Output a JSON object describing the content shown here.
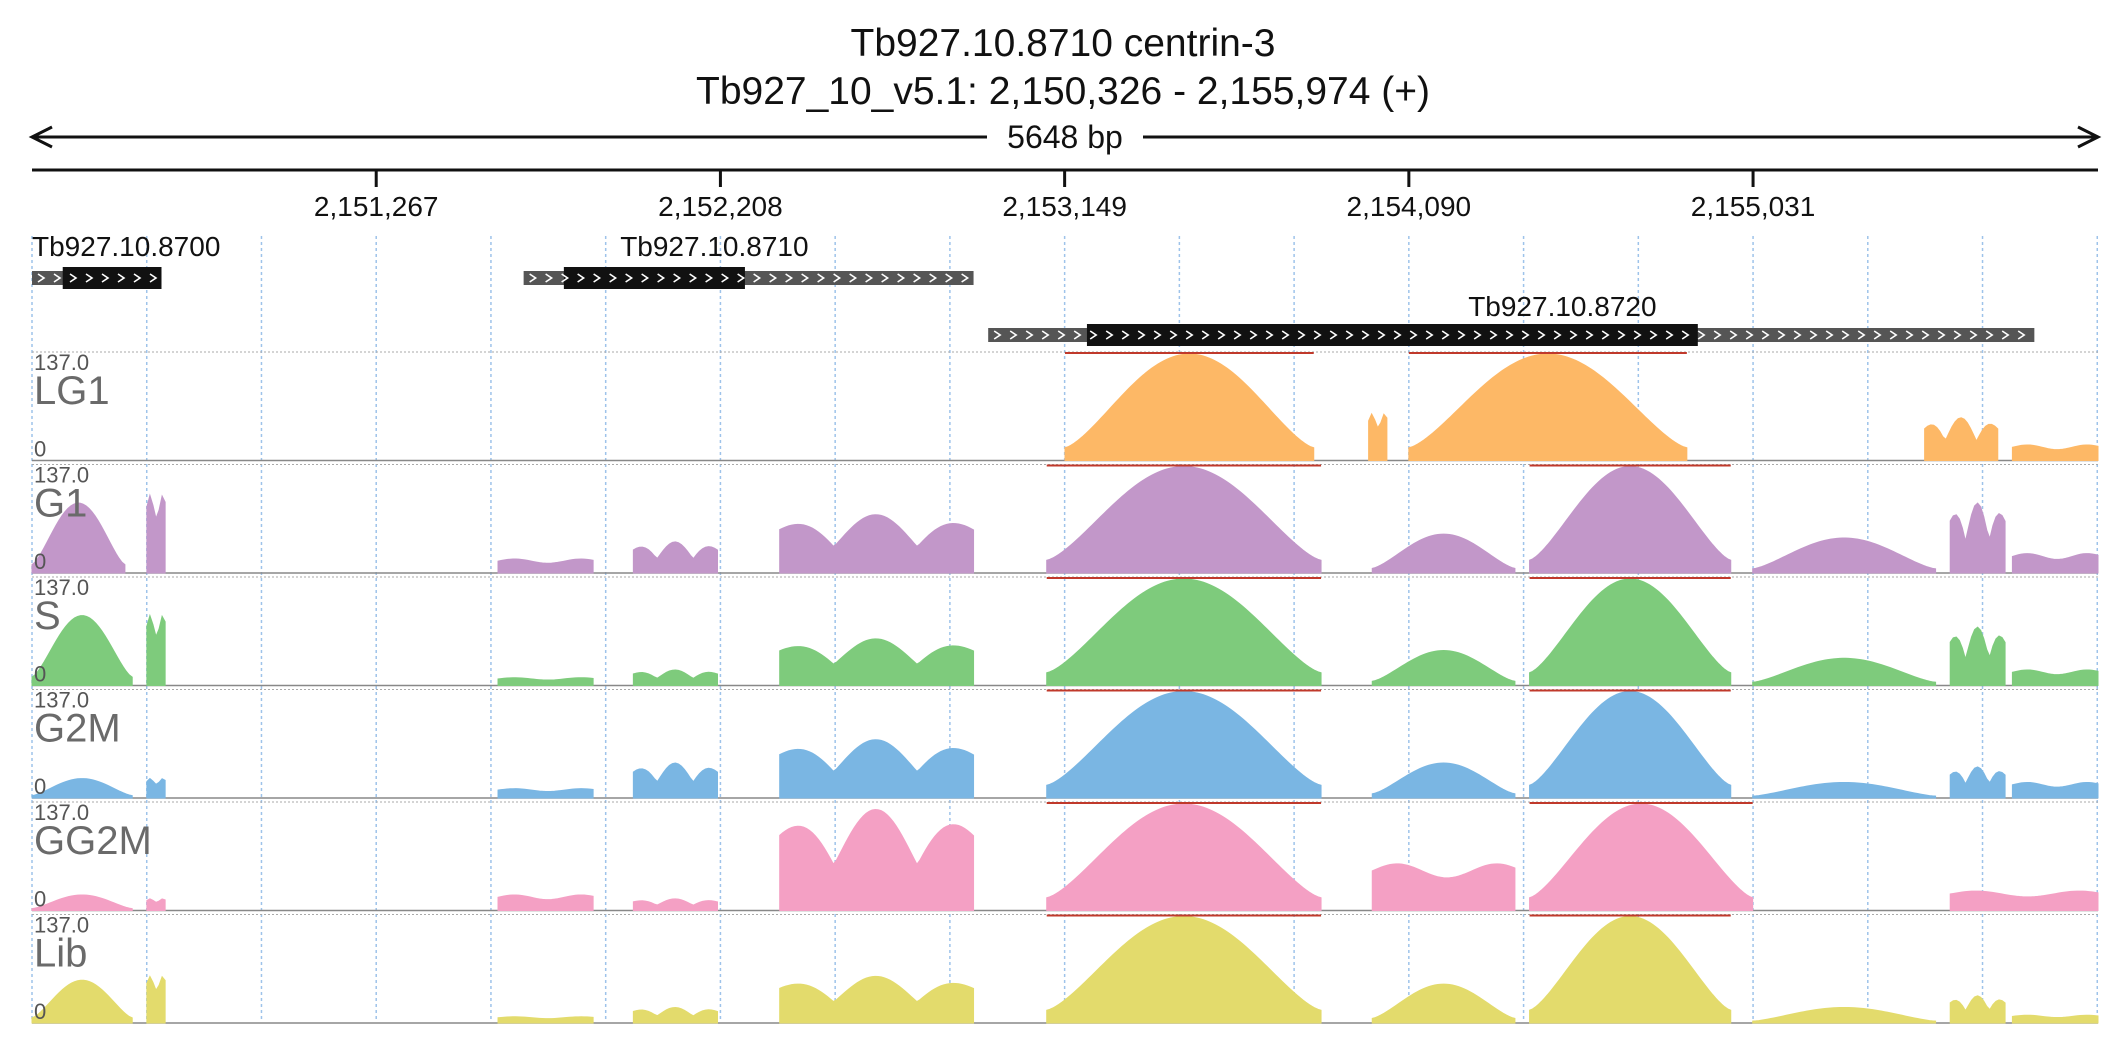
{
  "header": {
    "title_line1": "Tb927.10.8710  centrin-3",
    "title_line2": "Tb927_10_v5.1: 2,150,326 - 2,155,974 (+)",
    "span_label": "5648 bp"
  },
  "chart_data": {
    "type": "area",
    "region": {
      "chrom": "Tb927_10_v5.1",
      "start": 2150326,
      "end": 2155974,
      "strand": "+"
    },
    "ticks": [
      {
        "pos": 2151267,
        "label": "2,151,267"
      },
      {
        "pos": 2152208,
        "label": "2,152,208"
      },
      {
        "pos": 2153149,
        "label": "2,153,149"
      },
      {
        "pos": 2154090,
        "label": "2,154,090"
      },
      {
        "pos": 2155031,
        "label": "2,155,031"
      }
    ],
    "genes": [
      {
        "name": "Tb927.10.8700",
        "start": 2150326,
        "end": 2150680,
        "cds_start": 2150410,
        "cds_end": 2150680
      },
      {
        "name": "Tb927.10.8710",
        "start": 2151670,
        "end": 2152900,
        "cds_start": 2151780,
        "cds_end": 2152275
      },
      {
        "name": "Tb927.10.8720",
        "start": 2152940,
        "end": 2155800,
        "cds_start": 2153210,
        "cds_end": 2154880
      }
    ],
    "tracks": [
      {
        "name": "LG1",
        "max_label": "137.0",
        "min_label": "0",
        "color": "#fdb866",
        "peaks": [
          [
            2153150,
            2153830,
            137,
            "dome"
          ],
          [
            2153980,
            2154030,
            60,
            "flat"
          ],
          [
            2154090,
            2154850,
            137,
            "dome"
          ],
          [
            2155500,
            2155700,
            55,
            "step"
          ],
          [
            2155740,
            2155974,
            20,
            "flat"
          ]
        ]
      },
      {
        "name": "G1",
        "max_label": "137.0",
        "min_label": "0",
        "color": "#c297c9",
        "peaks": [
          [
            2150326,
            2150580,
            90,
            "dome"
          ],
          [
            2150640,
            2150690,
            100,
            "flat"
          ],
          [
            2151600,
            2151860,
            18,
            "flat"
          ],
          [
            2151970,
            2152200,
            40,
            "step"
          ],
          [
            2152370,
            2152900,
            75,
            "step"
          ],
          [
            2153100,
            2153850,
            137,
            "dome"
          ],
          [
            2153990,
            2154380,
            50,
            "dome"
          ],
          [
            2154420,
            2154970,
            137,
            "dome"
          ],
          [
            2155030,
            2155530,
            45,
            "dome"
          ],
          [
            2155570,
            2155720,
            90,
            "step"
          ],
          [
            2155740,
            2155974,
            25,
            "flat"
          ]
        ]
      },
      {
        "name": "S",
        "max_label": "137.0",
        "min_label": "0",
        "color": "#7ecb7c",
        "peaks": [
          [
            2150326,
            2150600,
            90,
            "dome"
          ],
          [
            2150640,
            2150690,
            90,
            "flat"
          ],
          [
            2151600,
            2151860,
            10,
            "flat"
          ],
          [
            2151970,
            2152200,
            20,
            "step"
          ],
          [
            2152370,
            2152900,
            60,
            "step"
          ],
          [
            2153100,
            2153850,
            137,
            "dome"
          ],
          [
            2153990,
            2154380,
            45,
            "dome"
          ],
          [
            2154420,
            2154970,
            137,
            "dome"
          ],
          [
            2155030,
            2155530,
            35,
            "dome"
          ],
          [
            2155570,
            2155720,
            75,
            "step"
          ],
          [
            2155740,
            2155974,
            20,
            "flat"
          ]
        ]
      },
      {
        "name": "G2M",
        "max_label": "137.0",
        "min_label": "0",
        "color": "#7ab6e3",
        "peaks": [
          [
            2150326,
            2150600,
            25,
            "dome"
          ],
          [
            2150640,
            2150690,
            25,
            "flat"
          ],
          [
            2151600,
            2151860,
            12,
            "flat"
          ],
          [
            2151970,
            2152200,
            45,
            "step"
          ],
          [
            2152370,
            2152900,
            75,
            "step"
          ],
          [
            2153100,
            2153850,
            137,
            "dome"
          ],
          [
            2153990,
            2154380,
            45,
            "dome"
          ],
          [
            2154420,
            2154970,
            137,
            "dome"
          ],
          [
            2155030,
            2155530,
            20,
            "dome"
          ],
          [
            2155570,
            2155720,
            40,
            "step"
          ],
          [
            2155740,
            2155974,
            20,
            "flat"
          ]
        ]
      },
      {
        "name": "GG2M",
        "max_label": "137.0",
        "min_label": "0",
        "color": "#f4a0c4",
        "peaks": [
          [
            2150326,
            2150600,
            20,
            "dome"
          ],
          [
            2150640,
            2150690,
            15,
            "flat"
          ],
          [
            2151600,
            2151860,
            20,
            "flat"
          ],
          [
            2151970,
            2152200,
            15,
            "step"
          ],
          [
            2152370,
            2152900,
            130,
            "step"
          ],
          [
            2153100,
            2153850,
            137,
            "dome"
          ],
          [
            2153990,
            2154380,
            60,
            "flat"
          ],
          [
            2154420,
            2155030,
            137,
            "dome"
          ],
          [
            2155570,
            2155974,
            25,
            "flat"
          ]
        ]
      },
      {
        "name": "Lib",
        "max_label": "137.0",
        "min_label": "0",
        "color": "#e3db6c",
        "peaks": [
          [
            2150326,
            2150600,
            55,
            "dome"
          ],
          [
            2150640,
            2150690,
            60,
            "flat"
          ],
          [
            2151600,
            2151860,
            8,
            "flat"
          ],
          [
            2151970,
            2152200,
            20,
            "step"
          ],
          [
            2152370,
            2152900,
            60,
            "step"
          ],
          [
            2153100,
            2153850,
            137,
            "dome"
          ],
          [
            2153990,
            2154380,
            50,
            "dome"
          ],
          [
            2154420,
            2154970,
            137,
            "dome"
          ],
          [
            2155030,
            2155530,
            20,
            "dome"
          ],
          [
            2155570,
            2155720,
            35,
            "step"
          ],
          [
            2155740,
            2155974,
            10,
            "flat"
          ]
        ]
      }
    ],
    "ymax": 137,
    "legend": "none",
    "grid": true
  }
}
